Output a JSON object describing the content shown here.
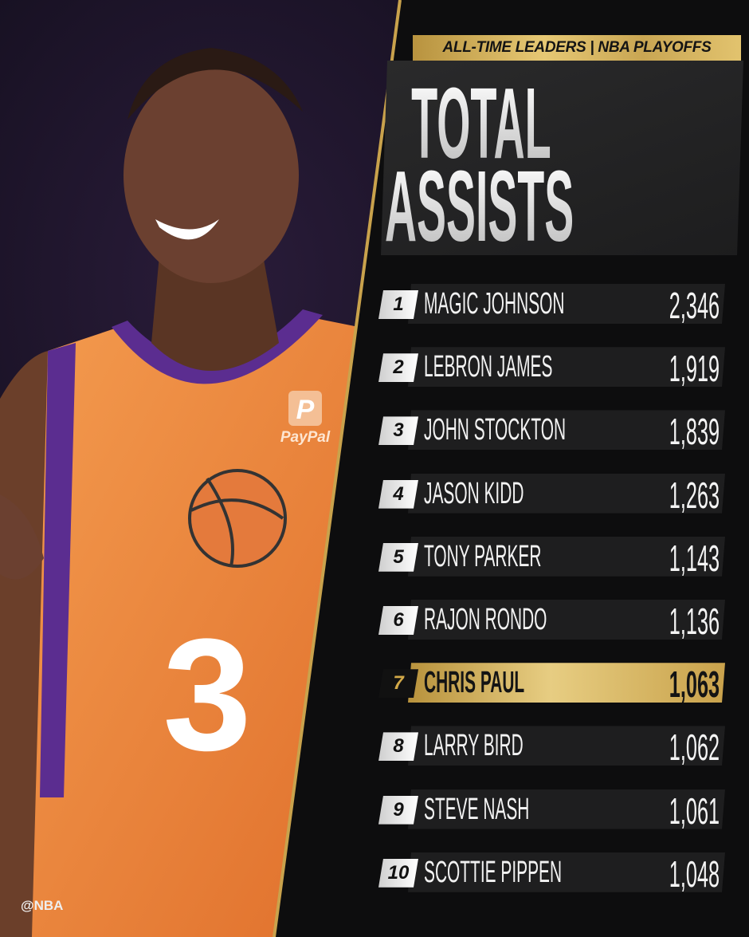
{
  "header": {
    "subtitle": "ALL-TIME LEADERS | NBA PLAYOFFS",
    "title_line1": "TOTAL",
    "title_line2": "ASSISTS"
  },
  "leaders": [
    {
      "rank": "1",
      "name": "MAGIC JOHNSON",
      "value": "2,346"
    },
    {
      "rank": "2",
      "name": "LEBRON JAMES",
      "value": "1,919"
    },
    {
      "rank": "3",
      "name": "JOHN STOCKTON",
      "value": "1,839"
    },
    {
      "rank": "4",
      "name": "JASON KIDD",
      "value": "1,263"
    },
    {
      "rank": "5",
      "name": "TONY PARKER",
      "value": "1,143"
    },
    {
      "rank": "6",
      "name": "RAJON RONDO",
      "value": "1,136"
    },
    {
      "rank": "7",
      "name": "CHRIS PAUL",
      "value": "1,063",
      "highlighted": true
    },
    {
      "rank": "8",
      "name": "LARRY BIRD",
      "value": "1,062"
    },
    {
      "rank": "9",
      "name": "STEVE NASH",
      "value": "1,061"
    },
    {
      "rank": "10",
      "name": "SCOTTIE PIPPEN",
      "value": "1,048"
    }
  ],
  "photo": {
    "jersey_number": "3",
    "jersey_sponsor": "PayPal"
  },
  "footer": {
    "handle": "@NBA"
  },
  "colors": {
    "gold": "#d6b563",
    "jersey": "#f08a3c",
    "trim": "#5b2d90",
    "panel": "#0d0d0e"
  }
}
